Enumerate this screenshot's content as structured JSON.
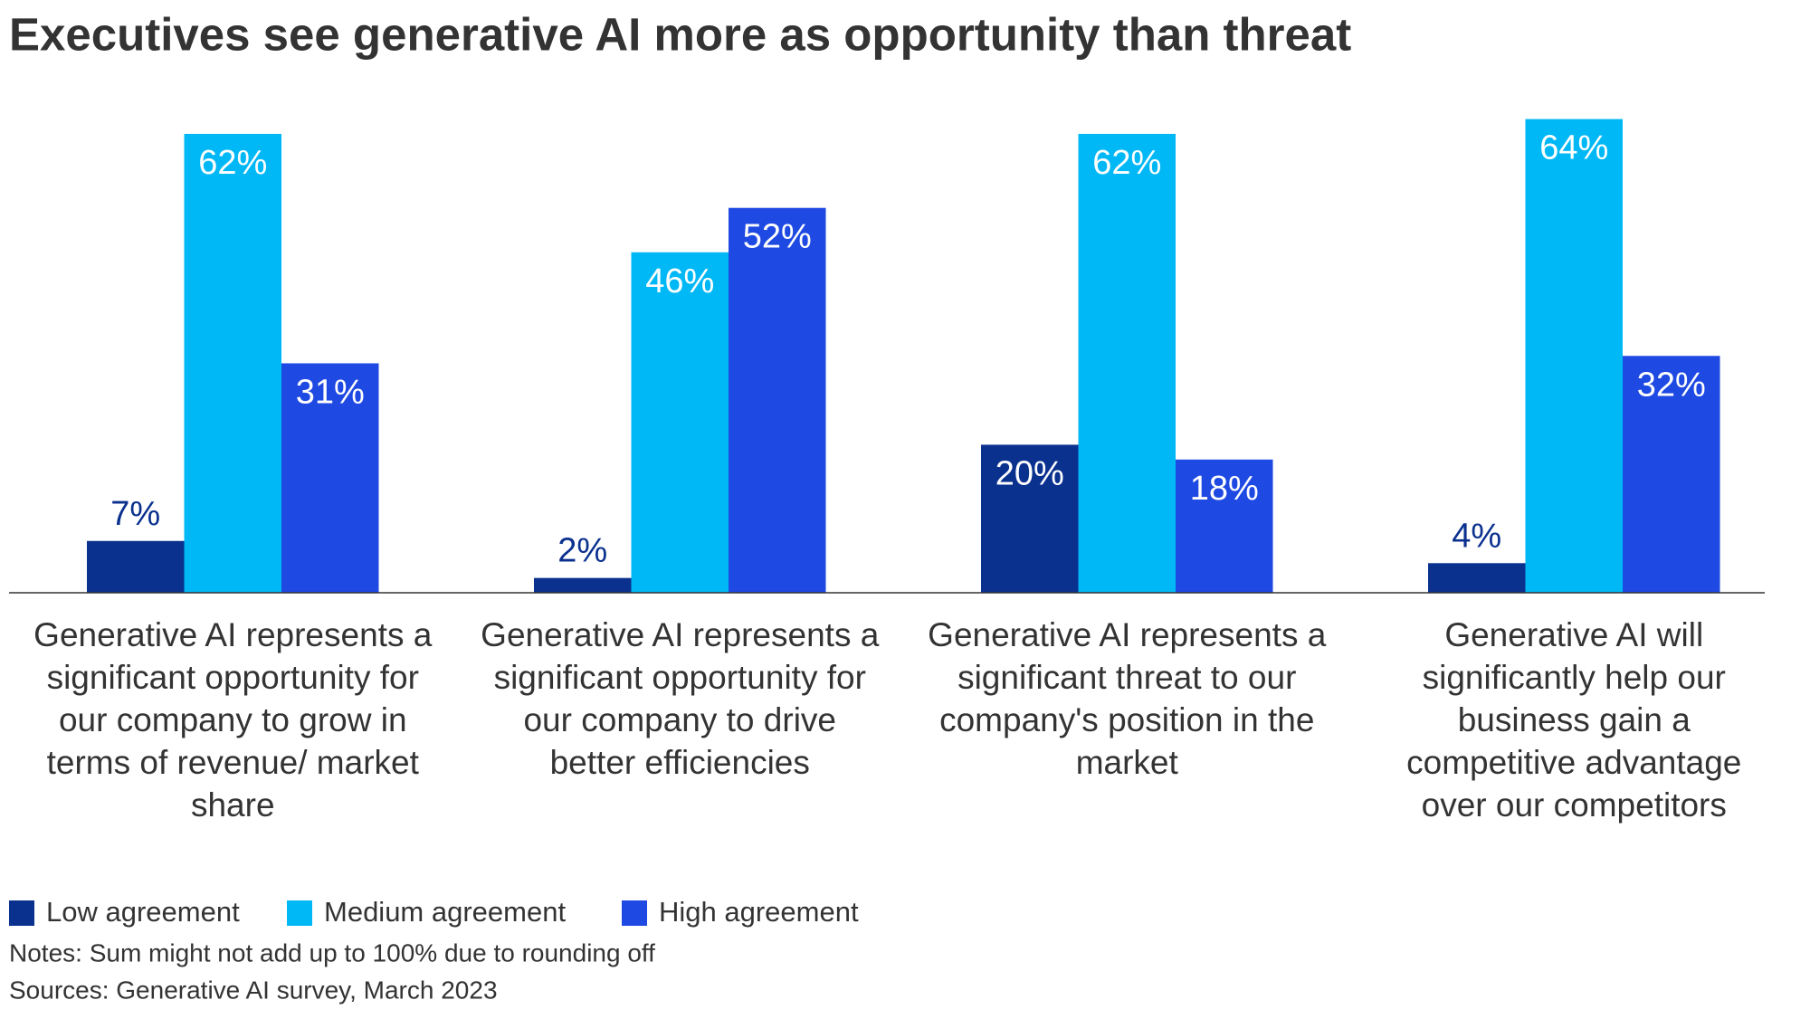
{
  "chart_data": {
    "type": "bar",
    "title": "Executives see generative AI more as opportunity than threat",
    "categories": [
      "Generative AI represents a significant opportunity for our company to grow in terms of revenue/ market share",
      "Generative AI represents a significant opportunity for our company to drive better efficiencies",
      "Generative AI represents a significant threat to our company's position in the market",
      "Generative AI will significantly help our business gain a competitive advantage over our competitors"
    ],
    "series": [
      {
        "name": "Low agreement",
        "color": "#0b318f",
        "values": [
          7,
          2,
          20,
          4
        ],
        "value_labels": [
          "7%",
          "2%",
          "20%",
          "4%"
        ]
      },
      {
        "name": "Medium agreement",
        "color": "#00b8f5",
        "values": [
          62,
          46,
          62,
          64
        ],
        "value_labels": [
          "62%",
          "46%",
          "62%",
          "64%"
        ]
      },
      {
        "name": "High agreement",
        "color": "#1e49e2",
        "values": [
          31,
          52,
          18,
          32
        ],
        "value_labels": [
          "31%",
          "52%",
          "18%",
          "32%"
        ]
      }
    ],
    "ylim": [
      0,
      70
    ],
    "notes": "Notes: Sum might not add up to 100% due to rounding off",
    "sources": "Sources: Generative AI survey, March 2023"
  }
}
